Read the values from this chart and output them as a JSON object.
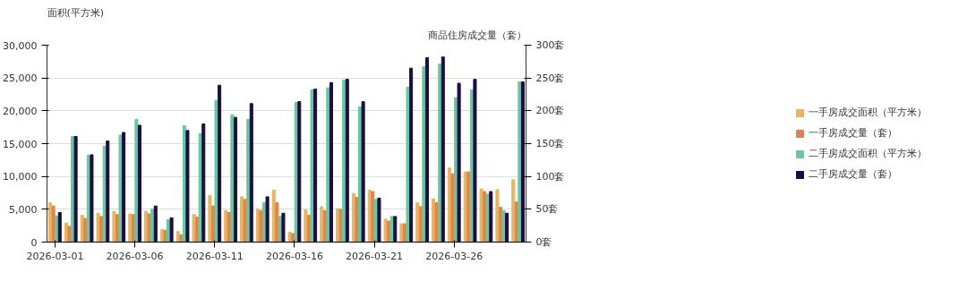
{
  "chart_data": {
    "type": "bar",
    "ylabel": "面积(平方米)",
    "y2label": "商品住房成交量（套）",
    "categories": [
      "2026-03-01",
      null,
      null,
      null,
      null,
      "2026-03-06",
      null,
      null,
      null,
      null,
      "2026-03-11",
      null,
      null,
      null,
      null,
      "2026-03-16",
      null,
      null,
      null,
      null,
      "2026-03-21",
      null,
      null,
      null,
      null,
      "2026-03-26",
      null,
      null,
      null,
      null
    ],
    "series": [
      {
        "name": "一手房成交面积（平方米）",
        "color": "#eab55a",
        "values": [
          6000,
          2900,
          4100,
          4400,
          4700,
          4300,
          4700,
          1900,
          1600,
          4200,
          7100,
          4800,
          6900,
          5000,
          7900,
          1500,
          4900,
          5400,
          5100,
          7400,
          7900,
          3500,
          2800,
          6000,
          6600,
          11300,
          10700,
          8100,
          8000,
          9500
        ]
      },
      {
        "name": "一手房成交量（套）",
        "color": "#e0844e",
        "axis": "y2",
        "values": [
          55,
          24,
          36,
          39,
          42,
          42,
          43,
          18,
          11,
          38,
          55,
          45,
          65,
          48,
          60,
          13,
          41,
          48,
          50,
          68,
          77,
          32,
          28,
          54,
          60,
          104,
          107,
          77,
          53,
          61
        ]
      },
      {
        "name": "二手房成交面积（平方米）",
        "color": "#62c9a0",
        "values": [
          4000,
          16100,
          13200,
          14600,
          16300,
          18700,
          5000,
          3400,
          17700,
          16500,
          21600,
          19400,
          18700,
          6000,
          3900,
          21300,
          23200,
          23500,
          24700,
          20600,
          6500,
          3900,
          23600,
          26700,
          27100,
          22000,
          23200,
          7300,
          4800,
          24400
        ]
      },
      {
        "name": "二手房成交量（套）",
        "color": "#1e0b45",
        "axis": "y2",
        "values": [
          45,
          161,
          133,
          154,
          167,
          178,
          55,
          37,
          170,
          180,
          239,
          190,
          211,
          69,
          44,
          214,
          233,
          243,
          248,
          214,
          67,
          39,
          265,
          281,
          282,
          242,
          248,
          77,
          44,
          244
        ]
      }
    ],
    "ylim": [
      0,
      30000
    ],
    "yticks": [
      0,
      {
        "value": 5000,
        "label": "5,000"
      },
      {
        "value": 10000,
        "label": "10,000"
      },
      {
        "value": 15000,
        "label": "15,000"
      },
      {
        "value": 20000,
        "label": "20,000"
      },
      {
        "value": 25000,
        "label": "25,000"
      },
      {
        "value": 30000,
        "label": "30,000"
      }
    ],
    "y2lim": [
      0,
      300
    ],
    "y2ticks": [
      {
        "value": 0,
        "label": "0套"
      },
      {
        "value": 50,
        "label": "50套"
      },
      {
        "value": 100,
        "label": "100套"
      },
      {
        "value": 150,
        "label": "150套"
      },
      {
        "value": 200,
        "label": "200套"
      },
      {
        "value": 250,
        "label": "250套"
      },
      {
        "value": 300,
        "label": "300套"
      }
    ],
    "grid": "y",
    "legend": "right"
  }
}
